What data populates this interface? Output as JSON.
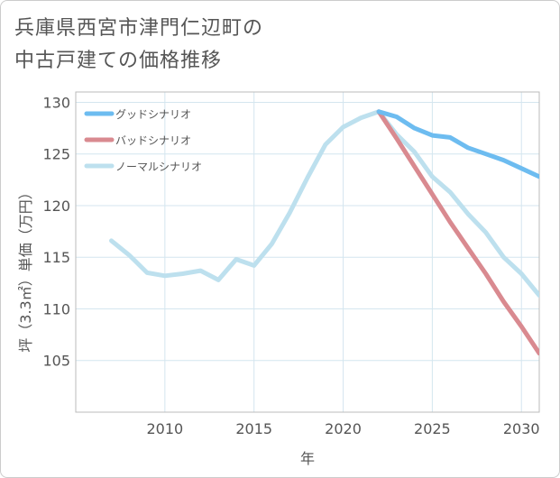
{
  "title_lines": [
    "兵庫県西宮市津門仁辺町の",
    "中古戸建ての価格推移"
  ],
  "chart_data": {
    "type": "line",
    "xlabel": "年",
    "ylabel": "坪（3.3㎡）単価（万円）",
    "xlim": [
      2005,
      2031
    ],
    "ylim": [
      100,
      131
    ],
    "xticks": [
      2010,
      2015,
      2020,
      2025,
      2030
    ],
    "yticks": [
      105,
      110,
      115,
      120,
      125,
      130
    ],
    "grid": true,
    "legend_position": "top-left",
    "series": [
      {
        "name": "グッドシナリオ",
        "color": "#6dbcf0",
        "x": [
          2022,
          2023,
          2024,
          2025,
          2026,
          2027,
          2028,
          2029,
          2030,
          2031
        ],
        "values": [
          129.1,
          128.6,
          127.5,
          126.8,
          126.6,
          125.6,
          125.0,
          124.4,
          123.6,
          122.8
        ]
      },
      {
        "name": "バッドシナリオ",
        "color": "#d98a90",
        "x": [
          2022,
          2023,
          2024,
          2025,
          2026,
          2027,
          2028,
          2029,
          2030,
          2031
        ],
        "values": [
          129.1,
          126.5,
          123.8,
          121.1,
          118.4,
          115.9,
          113.4,
          110.7,
          108.3,
          105.7
        ]
      },
      {
        "name": "ノーマルシナリオ",
        "color": "#bde0ee",
        "x": [
          2007,
          2008,
          2009,
          2010,
          2011,
          2012,
          2013,
          2014,
          2015,
          2016,
          2017,
          2018,
          2019,
          2020,
          2021,
          2022,
          2023,
          2024,
          2025,
          2026,
          2027,
          2028,
          2029,
          2030,
          2031
        ],
        "values": [
          116.6,
          115.2,
          113.5,
          113.2,
          113.4,
          113.7,
          112.8,
          114.8,
          114.2,
          116.3,
          119.3,
          122.7,
          125.9,
          127.6,
          128.5,
          129.1,
          126.9,
          125.2,
          122.8,
          121.3,
          119.2,
          117.4,
          115.0,
          113.4,
          111.3
        ]
      }
    ]
  }
}
